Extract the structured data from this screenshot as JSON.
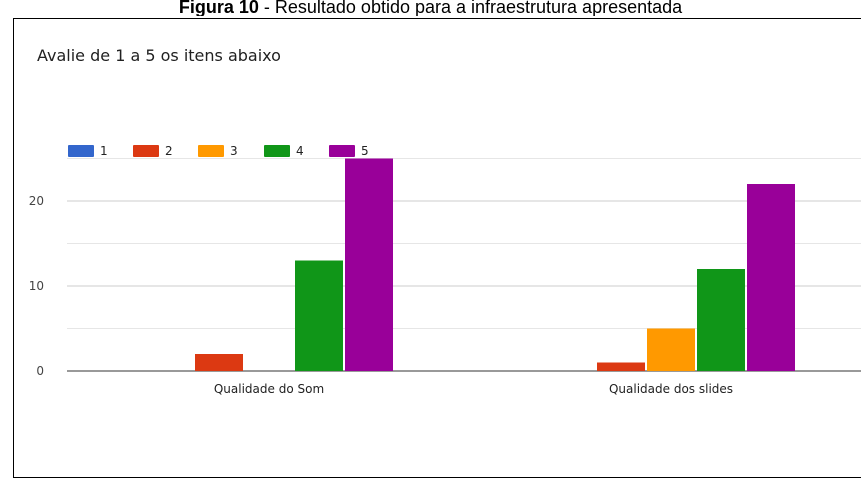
{
  "figure": {
    "caption_label": "Figura 10",
    "caption_sep": " - ",
    "caption_text": "Resultado obtido para a infraestrutura apresentada"
  },
  "form": {
    "title": "Avalie de 1 a 5 os itens abaixo"
  },
  "chart_data": {
    "type": "bar",
    "title": "Avalie de 1 a 5 os itens abaixo",
    "categories": [
      "Qualidade do Som",
      "Qualidade dos slides"
    ],
    "series": [
      {
        "name": "1",
        "color": "#3366cc",
        "values": [
          0,
          0
        ]
      },
      {
        "name": "2",
        "color": "#dc3912",
        "values": [
          2,
          1
        ]
      },
      {
        "name": "3",
        "color": "#ff9900",
        "values": [
          0,
          5
        ]
      },
      {
        "name": "4",
        "color": "#109618",
        "values": [
          13,
          12
        ]
      },
      {
        "name": "5",
        "color": "#990099",
        "values": [
          25,
          22
        ]
      }
    ],
    "yticks": [
      0,
      10,
      20
    ],
    "ylim": [
      0,
      25
    ],
    "grid": true,
    "legend": "top-left"
  }
}
